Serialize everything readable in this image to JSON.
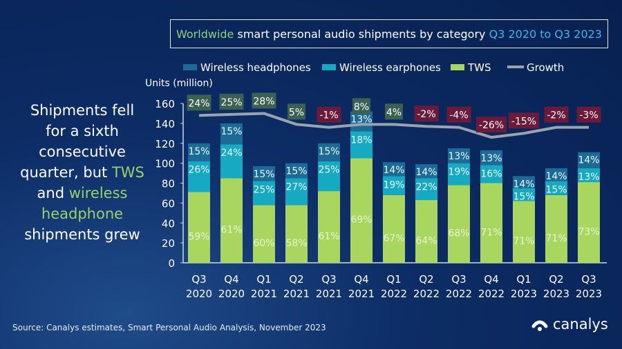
{
  "title": {
    "part1": "Worldwide",
    "part2": " smart personal audio shipments by category ",
    "part3": "Q3 2020 to Q3 2023"
  },
  "side_text": {
    "l1": "Shipments fell",
    "l2": "for a sixth",
    "l3": "consecutive",
    "l4a": "quarter, but ",
    "l4b": "TWS",
    "l5a": "and ",
    "l5b": "wireless",
    "l6": "headphone",
    "l7": "shipments grew"
  },
  "source": "Source: Canalys estimates, Smart Personal Audio Analysis, November 2023",
  "logo": "canalys",
  "colors": {
    "headphones": "#1b6b96",
    "earphones": "#16a9c2",
    "tws": "#a9d65e",
    "growth": "#9aa3ae",
    "pos_box": "#3b6152",
    "neg_box": "#6b1a3a"
  },
  "chart_data": {
    "type": "bar",
    "stacked": true,
    "title": "Worldwide smart personal audio shipments by category Q3 2020 to Q3 2023",
    "ylabel": "Units (million)",
    "ylim": [
      0,
      160
    ],
    "yticks": [
      0,
      20,
      40,
      60,
      80,
      100,
      120,
      140,
      160
    ],
    "categories": [
      [
        "Q3",
        "2020"
      ],
      [
        "Q4",
        "2020"
      ],
      [
        "Q1",
        "2021"
      ],
      [
        "Q2",
        "2021"
      ],
      [
        "Q3",
        "2021"
      ],
      [
        "Q4",
        "2021"
      ],
      [
        "Q1",
        "2022"
      ],
      [
        "Q2",
        "2022"
      ],
      [
        "Q3",
        "2022"
      ],
      [
        "Q4",
        "2022"
      ],
      [
        "Q1",
        "2023"
      ],
      [
        "Q2",
        "2023"
      ],
      [
        "Q3",
        "2023"
      ]
    ],
    "legend": [
      "Wireless headphones",
      "Wireless earphones",
      "TWS",
      "Growth"
    ],
    "legend_position": "top",
    "series": [
      {
        "name": "TWS",
        "values": [
          71,
          85,
          58,
          58,
          72,
          105,
          68,
          63,
          78,
          80,
          62,
          68,
          81
        ],
        "labels": [
          "59%",
          "61%",
          "60%",
          "58%",
          "61%",
          "69%",
          "67%",
          "64%",
          "68%",
          "71%",
          "71%",
          "71%",
          "73%"
        ]
      },
      {
        "name": "Wireless earphones",
        "values": [
          31,
          34,
          24,
          27,
          30,
          27,
          19,
          22,
          22,
          18,
          13,
          14,
          14
        ],
        "labels": [
          "26%",
          "24%",
          "25%",
          "27%",
          "25%",
          "18%",
          "19%",
          "22%",
          "19%",
          "16%",
          "15%",
          "15%",
          "13%"
        ]
      },
      {
        "name": "Wireless headphones",
        "values": [
          18,
          21,
          15,
          15,
          18,
          20,
          14,
          14,
          15,
          15,
          12,
          13,
          16
        ],
        "labels": [
          "15%",
          "15%",
          "15%",
          "15%",
          "15%",
          "13%",
          "14%",
          "14%",
          "13%",
          "13%",
          "14%",
          "14%",
          "14%"
        ]
      }
    ],
    "growth": {
      "name": "Growth",
      "labels": [
        "24%",
        "25%",
        "28%",
        "5%",
        "-1%",
        "8%",
        "4%",
        "-2%",
        "-4%",
        "-26%",
        "-15%",
        "-2%",
        "-3%"
      ],
      "line_values": [
        148,
        149,
        150,
        139,
        136,
        139,
        139,
        137,
        136,
        126,
        130,
        136,
        136
      ]
    }
  }
}
